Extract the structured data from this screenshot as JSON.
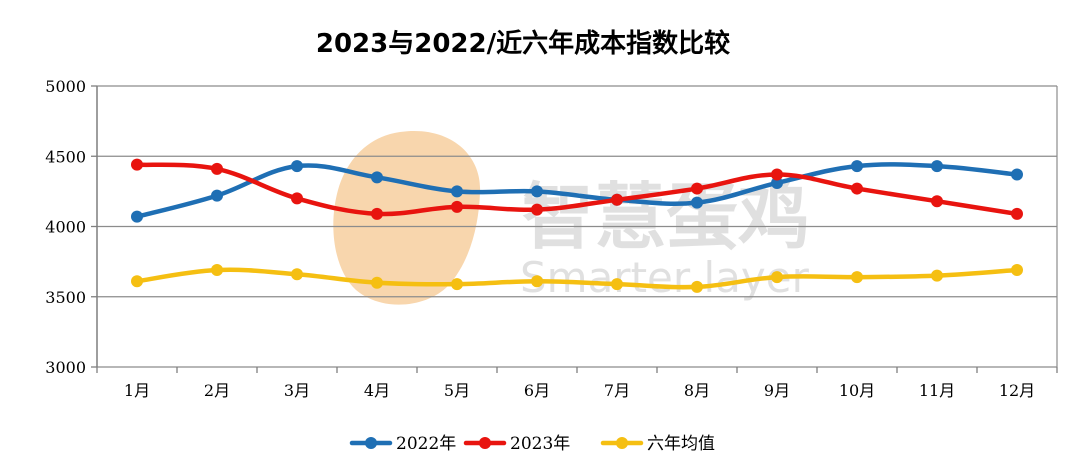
{
  "watermark": {
    "cn": "智慧蛋鸡",
    "en": "Smarter layer",
    "logo_color": "#f5c48a"
  },
  "chart_data": {
    "type": "line",
    "title": "2023与2022/近六年成本指数比较",
    "xlabel": "",
    "ylabel": "",
    "categories": [
      "1月",
      "2月",
      "3月",
      "4月",
      "5月",
      "6月",
      "7月",
      "8月",
      "9月",
      "10月",
      "11月",
      "12月"
    ],
    "ylim": [
      3000,
      5000
    ],
    "yticks": [
      "3000",
      "3500",
      "4000",
      "4500",
      "5000"
    ],
    "grid": "horizontal",
    "legend_position": "bottom",
    "series": [
      {
        "name": "2022年",
        "color": "#1f6fb4",
        "values": [
          4070,
          4220,
          4430,
          4350,
          4250,
          4250,
          4190,
          4170,
          4310,
          4430,
          4430,
          4370
        ]
      },
      {
        "name": "2023年",
        "color": "#e8140f",
        "values": [
          4440,
          4410,
          4200,
          4090,
          4140,
          4120,
          4190,
          4270,
          4370,
          4270,
          4180,
          4090
        ]
      },
      {
        "name": "六年均值",
        "color": "#f5bf12",
        "values": [
          3610,
          3690,
          3660,
          3600,
          3590,
          3610,
          3590,
          3570,
          3640,
          3640,
          3650,
          3690
        ]
      }
    ]
  }
}
